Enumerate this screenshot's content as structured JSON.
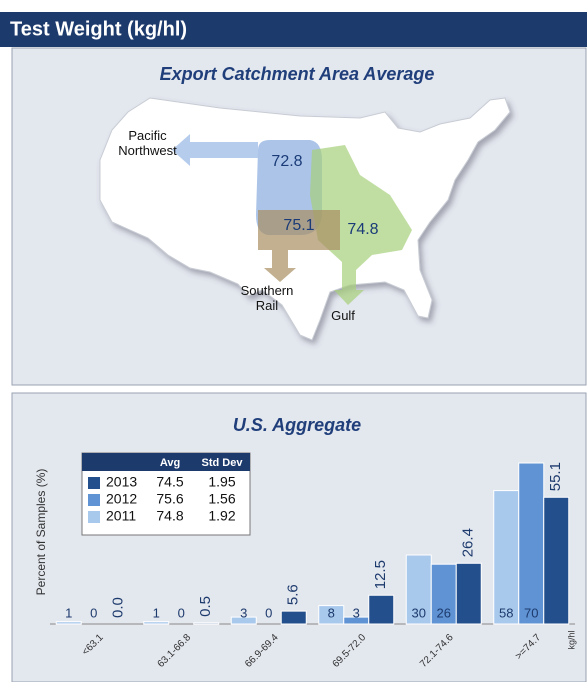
{
  "header": {
    "title": "Test Weight (kg/hl)"
  },
  "map": {
    "title": "Export Catchment Area Average",
    "regions": [
      {
        "name": "Pacific Northwest",
        "value": 72.8
      },
      {
        "name": "Southern Rail",
        "value": 75.1
      },
      {
        "name": "Gulf",
        "value": 74.8
      }
    ]
  },
  "chart_data": {
    "type": "bar",
    "title": "U.S. Aggregate",
    "y_label": "Percent of Samples (%)",
    "x_unit": "kg/hl",
    "categories": [
      "<63.1",
      "63.1-66.8",
      "66.9-69.4",
      "69.5-72.0",
      "72.1-74.6",
      ">=74.7"
    ],
    "legend_columns": [
      "Avg",
      "Std Dev"
    ],
    "series": [
      {
        "name": "2011",
        "color": "#a9c9ec",
        "avg": 74.8,
        "std_dev": 1.92,
        "values": [
          1,
          1,
          3,
          8,
          30,
          58
        ]
      },
      {
        "name": "2012",
        "color": "#5f93d3",
        "avg": 75.6,
        "std_dev": 1.56,
        "values": [
          0,
          0,
          0,
          3,
          26,
          70
        ]
      },
      {
        "name": "2013",
        "color": "#234f8c",
        "avg": 74.5,
        "std_dev": 1.95,
        "values": [
          0,
          0.5,
          5.6,
          12.5,
          26.4,
          55.1
        ],
        "value_labels": [
          "0.0",
          "0.5",
          "5.6",
          "12.5",
          "26.4",
          "55.1"
        ]
      }
    ],
    "ylim": [
      0,
      70
    ]
  }
}
